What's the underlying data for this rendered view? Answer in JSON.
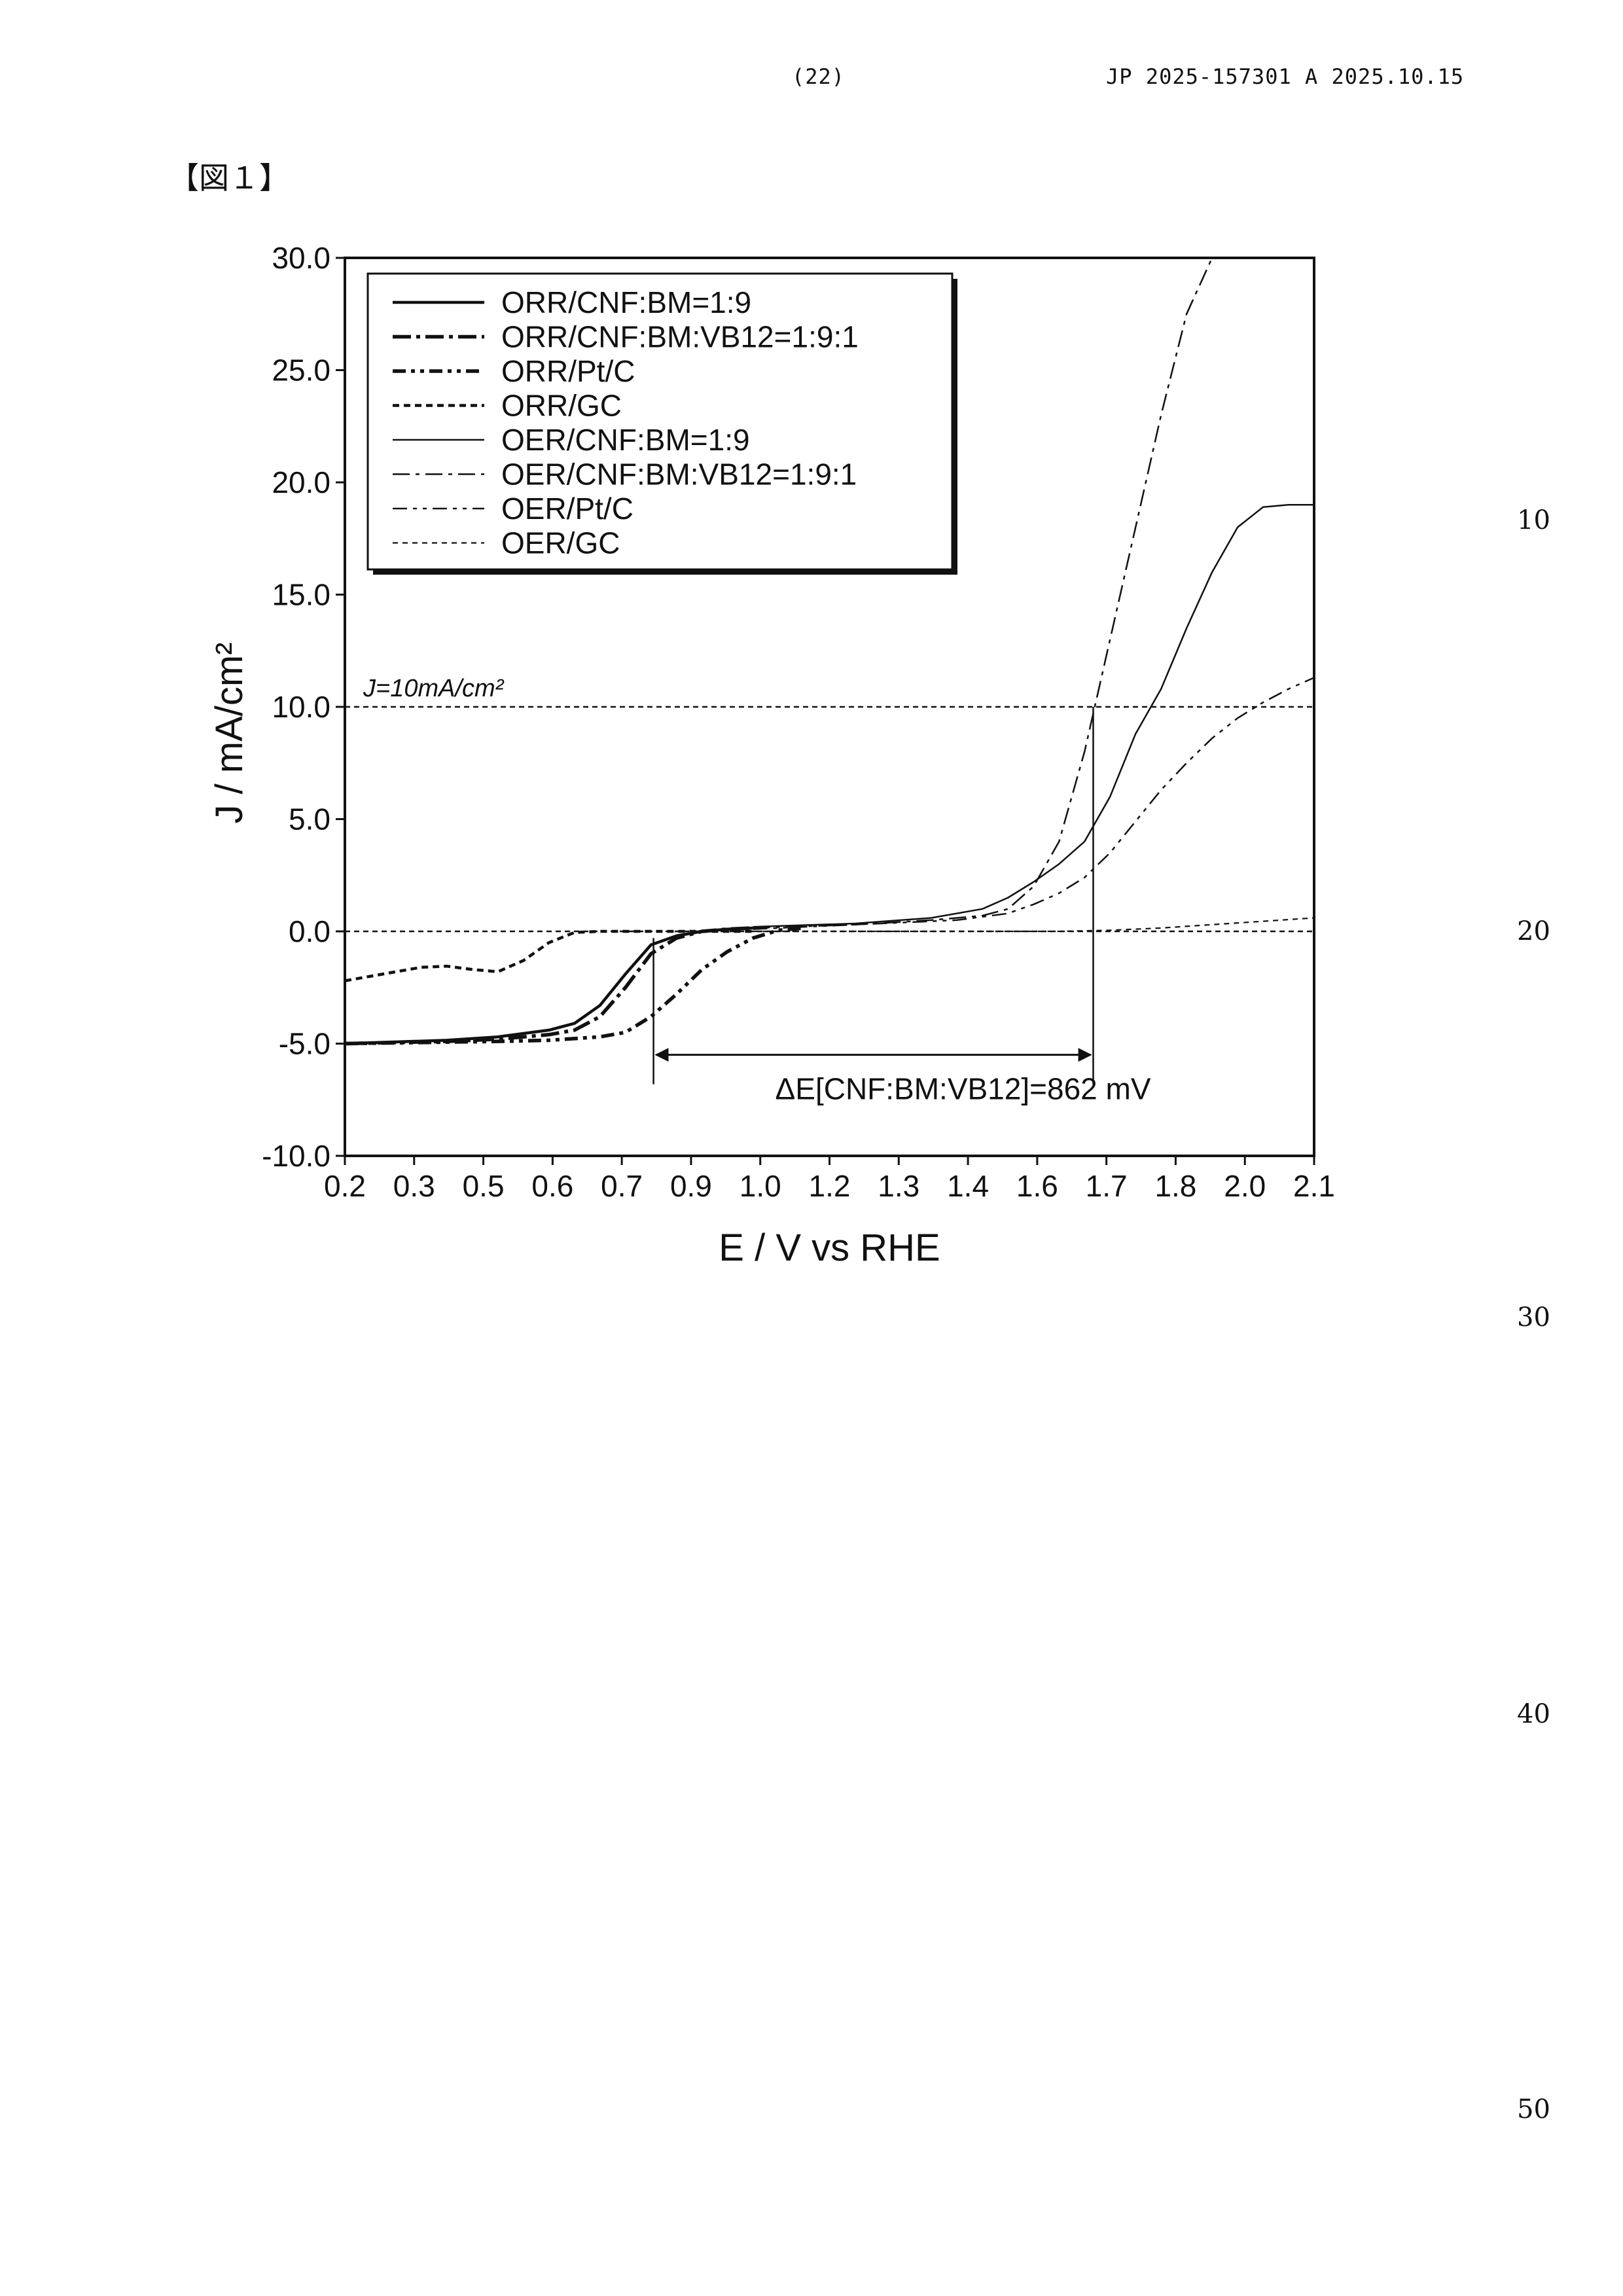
{
  "header": {
    "page_number": "(22)",
    "publication": "JP  2025-157301  A  2025.10.15"
  },
  "figure_label": "【図１】",
  "line_numbers": [
    "10",
    "20",
    "30",
    "40",
    "50"
  ],
  "chart_data": {
    "type": "line",
    "title": "",
    "xlabel": "E / V vs RHE",
    "ylabel": "J / mA/cm²",
    "x_tick_labels": [
      "0.2",
      "0.3",
      "0.5",
      "0.6",
      "0.7",
      "0.9",
      "1.0",
      "1.2",
      "1.3",
      "1.4",
      "1.6",
      "1.7",
      "1.8",
      "2.0",
      "2.1"
    ],
    "xlim": [
      0.2,
      2.1
    ],
    "y_tick_labels": [
      "30.0",
      "25.0",
      "20.0",
      "15.0",
      "10.0",
      "5.0",
      "0.0",
      "-5.0",
      "-10.0"
    ],
    "ylim": [
      -10,
      30
    ],
    "grid": false,
    "legend_position": "top-left",
    "reference_line": {
      "y": 10,
      "label": "J=10mA/cm²"
    },
    "annotation": {
      "text": "ΔE[CNF:BM:VB12]=862 mV",
      "x_start": 0.805,
      "x_end": 1.667,
      "y": -5.5
    },
    "series": [
      {
        "name": "ORR/CNF:BM=1:9",
        "x": [
          0.2,
          0.4,
          0.5,
          0.6,
          0.65,
          0.7,
          0.75,
          0.8,
          0.85,
          0.9,
          0.95,
          1.0
        ],
        "y": [
          -5.0,
          -4.85,
          -4.7,
          -4.4,
          -4.1,
          -3.3,
          -1.9,
          -0.6,
          -0.2,
          0.0,
          0.1,
          0.15
        ]
      },
      {
        "name": "ORR/CNF:BM:VB12=1:9:1",
        "x": [
          0.2,
          0.4,
          0.5,
          0.6,
          0.65,
          0.7,
          0.75,
          0.8,
          0.85,
          0.9,
          0.95,
          1.0
        ],
        "y": [
          -5.0,
          -4.9,
          -4.8,
          -4.6,
          -4.4,
          -3.8,
          -2.5,
          -1.0,
          -0.3,
          0.0,
          0.1,
          0.15
        ]
      },
      {
        "name": "ORR/Pt/C",
        "x": [
          0.2,
          0.5,
          0.6,
          0.7,
          0.75,
          0.8,
          0.85,
          0.9,
          0.95,
          1.0,
          1.05,
          1.1
        ],
        "y": [
          -5.0,
          -4.9,
          -4.85,
          -4.7,
          -4.5,
          -3.8,
          -2.8,
          -1.7,
          -0.9,
          -0.3,
          0.05,
          0.15
        ]
      },
      {
        "name": "ORR/GC",
        "x": [
          0.2,
          0.25,
          0.3,
          0.35,
          0.4,
          0.45,
          0.5,
          0.55,
          0.6,
          0.65,
          0.7,
          0.8,
          0.9,
          1.0
        ],
        "y": [
          -2.2,
          -2.0,
          -1.8,
          -1.6,
          -1.55,
          -1.7,
          -1.8,
          -1.3,
          -0.5,
          -0.05,
          0.0,
          0.0,
          0.0,
          0.0
        ]
      },
      {
        "name": "OER/CNF:BM=1:9",
        "x": [
          1.0,
          1.2,
          1.35,
          1.45,
          1.5,
          1.55,
          1.6,
          1.65,
          1.7,
          1.75,
          1.8,
          1.85,
          1.9,
          1.95,
          2.0,
          2.05,
          2.1
        ],
        "y": [
          0.2,
          0.35,
          0.6,
          1.0,
          1.5,
          2.2,
          3.0,
          4.0,
          6.0,
          8.8,
          10.8,
          13.5,
          16.0,
          18.0,
          18.9,
          19.0,
          19.0
        ]
      },
      {
        "name": "OER/CNF:BM:VB12=1:9:1",
        "x": [
          1.0,
          1.2,
          1.35,
          1.45,
          1.5,
          1.55,
          1.6,
          1.65,
          1.7,
          1.75,
          1.8,
          1.85,
          1.9
        ],
        "y": [
          0.15,
          0.3,
          0.5,
          0.7,
          1.0,
          2.0,
          4.0,
          8.0,
          13.0,
          18.0,
          23.0,
          27.5,
          30.0
        ]
      },
      {
        "name": "OER/Pt/C",
        "x": [
          1.0,
          1.2,
          1.4,
          1.5,
          1.55,
          1.6,
          1.65,
          1.7,
          1.75,
          1.8,
          1.85,
          1.9,
          1.95,
          2.0,
          2.05,
          2.1
        ],
        "y": [
          0.1,
          0.3,
          0.5,
          0.8,
          1.2,
          1.7,
          2.4,
          3.5,
          4.9,
          6.3,
          7.5,
          8.6,
          9.5,
          10.2,
          10.8,
          11.3
        ]
      },
      {
        "name": "OER/GC",
        "x": [
          1.0,
          1.3,
          1.5,
          1.6,
          1.7,
          1.8,
          1.9,
          2.0,
          2.1
        ],
        "y": [
          0.0,
          0.0,
          0.0,
          0.0,
          0.05,
          0.15,
          0.3,
          0.45,
          0.6
        ]
      }
    ]
  }
}
